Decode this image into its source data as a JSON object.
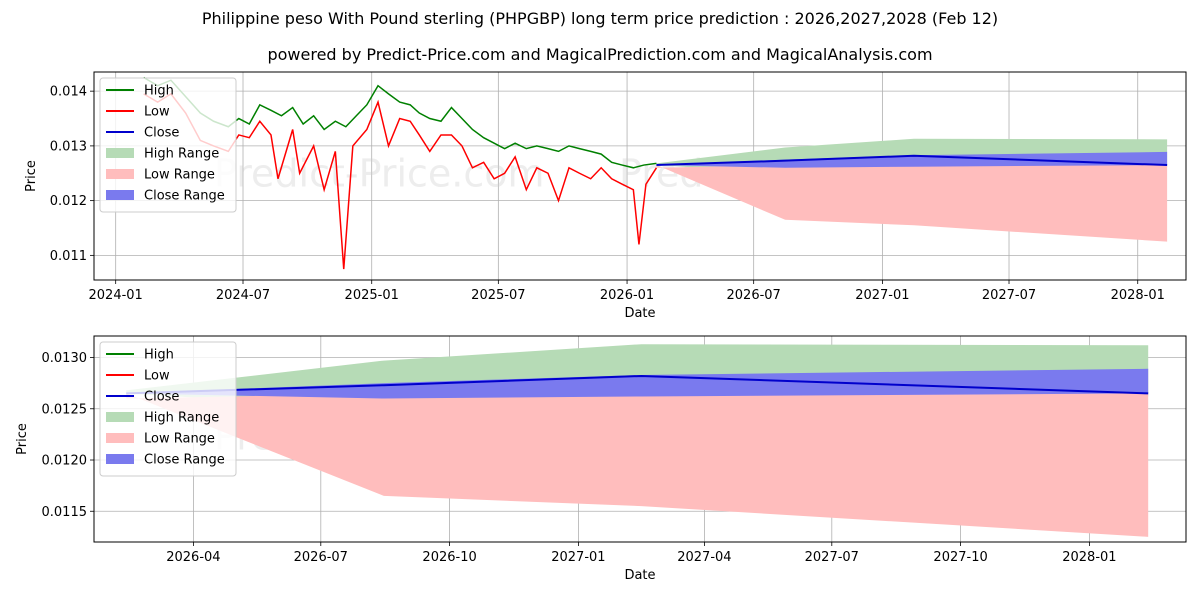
{
  "title": "Philippine peso With Pound sterling (PHPGBP) long term price prediction : 2026,2027,2028 (Feb 12)",
  "subtitle": "powered by Predict-Price.com and MagicalPrediction.com and MagicalAnalysis.com",
  "watermark": "Predict-Price.com",
  "colors": {
    "high": "#008000",
    "low": "#ff0000",
    "close": "#0000cc",
    "high_range": "#b6dbb6",
    "low_range": "#ffbdbd",
    "close_range": "#7a7aee"
  },
  "chart_data": [
    {
      "type": "line",
      "panel": "top",
      "xlabel": "Date",
      "ylabel": "Price",
      "x_range": [
        "2023-12-01",
        "2028-03-10"
      ],
      "ylim": [
        0.01055,
        0.01435
      ],
      "x_ticks": [
        "2024-01",
        "2024-07",
        "2025-01",
        "2025-07",
        "2026-01",
        "2026-07",
        "2027-01",
        "2027-07",
        "2028-01"
      ],
      "y_ticks": [
        0.011,
        0.012,
        0.013,
        0.014
      ],
      "legend": [
        "High",
        "Low",
        "Close",
        "High Range",
        "Low Range",
        "Close Range"
      ],
      "legend_position": "top-left",
      "grid": true,
      "history_high": [
        [
          "2024-02-10",
          0.01425
        ],
        [
          "2024-03-01",
          0.0141
        ],
        [
          "2024-03-20",
          0.0142
        ],
        [
          "2024-04-10",
          0.0139
        ],
        [
          "2024-05-01",
          0.0136
        ],
        [
          "2024-05-20",
          0.01345
        ],
        [
          "2024-06-10",
          0.01335
        ],
        [
          "2024-06-25",
          0.0135
        ],
        [
          "2024-07-10",
          0.0134
        ],
        [
          "2024-07-25",
          0.01375
        ],
        [
          "2024-08-10",
          0.01365
        ],
        [
          "2024-08-25",
          0.01355
        ],
        [
          "2024-09-10",
          0.0137
        ],
        [
          "2024-09-25",
          0.0134
        ],
        [
          "2024-10-10",
          0.01355
        ],
        [
          "2024-10-25",
          0.0133
        ],
        [
          "2024-11-10",
          0.01345
        ],
        [
          "2024-11-25",
          0.01335
        ],
        [
          "2024-12-10",
          0.01355
        ],
        [
          "2024-12-25",
          0.01375
        ],
        [
          "2025-01-10",
          0.0141
        ],
        [
          "2025-01-25",
          0.01395
        ],
        [
          "2025-02-10",
          0.0138
        ],
        [
          "2025-02-25",
          0.01375
        ],
        [
          "2025-03-10",
          0.0136
        ],
        [
          "2025-03-25",
          0.0135
        ],
        [
          "2025-04-10",
          0.01345
        ],
        [
          "2025-04-25",
          0.0137
        ],
        [
          "2025-05-10",
          0.0135
        ],
        [
          "2025-05-25",
          0.0133
        ],
        [
          "2025-06-10",
          0.01315
        ],
        [
          "2025-06-25",
          0.01305
        ],
        [
          "2025-07-10",
          0.01295
        ],
        [
          "2025-07-25",
          0.01305
        ],
        [
          "2025-08-10",
          0.01295
        ],
        [
          "2025-08-25",
          0.013
        ],
        [
          "2025-09-10",
          0.01295
        ],
        [
          "2025-09-25",
          0.0129
        ],
        [
          "2025-10-10",
          0.013
        ],
        [
          "2025-10-25",
          0.01295
        ],
        [
          "2025-11-10",
          0.0129
        ],
        [
          "2025-11-25",
          0.01285
        ],
        [
          "2025-12-10",
          0.0127
        ],
        [
          "2025-12-25",
          0.01265
        ],
        [
          "2026-01-10",
          0.0126
        ],
        [
          "2026-01-25",
          0.01265
        ],
        [
          "2026-02-12",
          0.01268
        ]
      ],
      "history_low": [
        [
          "2024-02-10",
          0.01395
        ],
        [
          "2024-03-01",
          0.0138
        ],
        [
          "2024-03-20",
          0.01395
        ],
        [
          "2024-04-10",
          0.0136
        ],
        [
          "2024-05-01",
          0.0131
        ],
        [
          "2024-05-20",
          0.013
        ],
        [
          "2024-06-10",
          0.0129
        ],
        [
          "2024-06-25",
          0.0132
        ],
        [
          "2024-07-10",
          0.01315
        ],
        [
          "2024-07-25",
          0.01345
        ],
        [
          "2024-08-10",
          0.0132
        ],
        [
          "2024-08-20",
          0.0124
        ],
        [
          "2024-09-10",
          0.0133
        ],
        [
          "2024-09-20",
          0.0125
        ],
        [
          "2024-10-10",
          0.013
        ],
        [
          "2024-10-25",
          0.0122
        ],
        [
          "2024-11-10",
          0.0129
        ],
        [
          "2024-11-22",
          0.01075
        ],
        [
          "2024-12-05",
          0.013
        ],
        [
          "2024-12-25",
          0.0133
        ],
        [
          "2025-01-10",
          0.0138
        ],
        [
          "2025-01-25",
          0.013
        ],
        [
          "2025-02-10",
          0.0135
        ],
        [
          "2025-02-25",
          0.01345
        ],
        [
          "2025-03-10",
          0.0132
        ],
        [
          "2025-03-25",
          0.0129
        ],
        [
          "2025-04-10",
          0.0132
        ],
        [
          "2025-04-25",
          0.0132
        ],
        [
          "2025-05-10",
          0.013
        ],
        [
          "2025-05-25",
          0.0126
        ],
        [
          "2025-06-10",
          0.0127
        ],
        [
          "2025-06-25",
          0.0124
        ],
        [
          "2025-07-10",
          0.0125
        ],
        [
          "2025-07-25",
          0.0128
        ],
        [
          "2025-08-10",
          0.0122
        ],
        [
          "2025-08-25",
          0.0126
        ],
        [
          "2025-09-10",
          0.0125
        ],
        [
          "2025-09-25",
          0.012
        ],
        [
          "2025-10-10",
          0.0126
        ],
        [
          "2025-10-25",
          0.0125
        ],
        [
          "2025-11-10",
          0.0124
        ],
        [
          "2025-11-25",
          0.0126
        ],
        [
          "2025-12-10",
          0.0124
        ],
        [
          "2025-12-25",
          0.0123
        ],
        [
          "2026-01-10",
          0.0122
        ],
        [
          "2026-01-18",
          0.0112
        ],
        [
          "2026-01-28",
          0.0123
        ],
        [
          "2026-02-12",
          0.0126
        ]
      ],
      "forecast_dates": [
        "2026-02-12",
        "2026-08-15",
        "2027-02-15",
        "2028-02-12"
      ],
      "close": [
        0.01265,
        0.01273,
        0.01282,
        0.01265
      ],
      "high_range": [
        [
          0.01265,
          0.01268
        ],
        [
          0.0125,
          0.01297
        ],
        [
          0.0126,
          0.01313
        ],
        [
          0.01262,
          0.01312
        ]
      ],
      "low_range": [
        [
          0.01265,
          0.0126
        ],
        [
          0.01165,
          0.01265
        ],
        [
          0.01155,
          0.01265
        ],
        [
          0.01125,
          0.01265
        ]
      ],
      "close_range": [
        [
          0.01265,
          0.01265
        ],
        [
          0.0126,
          0.01275
        ],
        [
          0.01262,
          0.01283
        ],
        [
          0.01265,
          0.01289
        ]
      ]
    },
    {
      "type": "line",
      "panel": "bottom",
      "xlabel": "Date",
      "ylabel": "Price",
      "x_range": [
        "2026-01-20",
        "2028-03-10"
      ],
      "ylim": [
        0.0112,
        0.01321
      ],
      "x_ticks": [
        "2026-04",
        "2026-07",
        "2026-10",
        "2027-01",
        "2027-04",
        "2027-07",
        "2027-10",
        "2028-01"
      ],
      "y_ticks": [
        0.0115,
        0.012,
        0.0125,
        0.013
      ],
      "y_tick_labels": [
        "0.0115",
        "0.0120",
        "0.0125",
        "0.0130"
      ],
      "legend": [
        "High",
        "Low",
        "Close",
        "High Range",
        "Low Range",
        "Close Range"
      ],
      "legend_position": "top-left",
      "grid": true,
      "forecast_dates": [
        "2026-02-12",
        "2026-08-15",
        "2027-02-15",
        "2028-02-12"
      ],
      "close": [
        0.01265,
        0.01273,
        0.01282,
        0.01265
      ],
      "high_range": [
        [
          0.01265,
          0.01268
        ],
        [
          0.0125,
          0.01297
        ],
        [
          0.0126,
          0.01313
        ],
        [
          0.01262,
          0.01312
        ]
      ],
      "low_range": [
        [
          0.01265,
          0.0126
        ],
        [
          0.01165,
          0.01265
        ],
        [
          0.01155,
          0.01265
        ],
        [
          0.01125,
          0.01265
        ]
      ],
      "close_range": [
        [
          0.01265,
          0.01265
        ],
        [
          0.0126,
          0.01275
        ],
        [
          0.01262,
          0.01283
        ],
        [
          0.01265,
          0.01289
        ]
      ]
    }
  ]
}
